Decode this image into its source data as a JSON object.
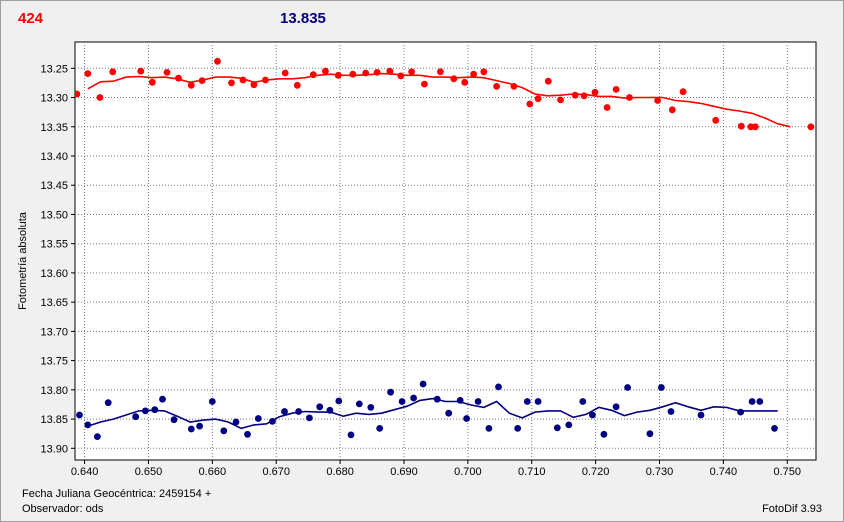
{
  "header": {
    "left_value": "424",
    "center_value": "13.835",
    "left_color": "#ff0000",
    "center_color": "#000080"
  },
  "footer": {
    "date_label": "Fecha Juliana Geocéntrica: 2459154 +",
    "observer_label": "Observador: ods",
    "version": "FotoDif 3.93"
  },
  "chart_data": {
    "type": "scatter",
    "ylabel": "Fotometría absoluta",
    "xlabel": "",
    "xlim": [
      0.6385,
      0.7545
    ],
    "ylim": [
      13.92,
      13.205
    ],
    "y_inverted": true,
    "grid": true,
    "x_ticks": [
      "0.640",
      "0.650",
      "0.660",
      "0.670",
      "0.680",
      "0.690",
      "0.700",
      "0.710",
      "0.720",
      "0.730",
      "0.740",
      "0.750"
    ],
    "y_ticks": [
      "13.25",
      "13.30",
      "13.35",
      "13.40",
      "13.45",
      "13.50",
      "13.55",
      "13.60",
      "13.65",
      "13.70",
      "13.75",
      "13.80",
      "13.85",
      "13.90"
    ],
    "series": [
      {
        "color": "#ff0000",
        "points": [
          [
            0.6388,
            13.294
          ],
          [
            0.6405,
            13.259
          ],
          [
            0.6424,
            13.3
          ],
          [
            0.6444,
            13.256
          ],
          [
            0.6488,
            13.255
          ],
          [
            0.6506,
            13.274
          ],
          [
            0.6529,
            13.257
          ],
          [
            0.6547,
            13.267
          ],
          [
            0.6567,
            13.279
          ],
          [
            0.6584,
            13.271
          ],
          [
            0.6608,
            13.238
          ],
          [
            0.663,
            13.275
          ],
          [
            0.6648,
            13.27
          ],
          [
            0.6665,
            13.278
          ],
          [
            0.6683,
            13.27
          ],
          [
            0.6714,
            13.258
          ],
          [
            0.6733,
            13.279
          ],
          [
            0.6758,
            13.261
          ],
          [
            0.6777,
            13.255
          ],
          [
            0.6797,
            13.262
          ],
          [
            0.682,
            13.26
          ],
          [
            0.684,
            13.258
          ],
          [
            0.6858,
            13.257
          ],
          [
            0.6878,
            13.255
          ],
          [
            0.6895,
            13.263
          ],
          [
            0.6912,
            13.256
          ],
          [
            0.6932,
            13.277
          ],
          [
            0.6957,
            13.256
          ],
          [
            0.6978,
            13.268
          ],
          [
            0.6995,
            13.274
          ],
          [
            0.7009,
            13.26
          ],
          [
            0.7025,
            13.256
          ],
          [
            0.7045,
            13.281
          ],
          [
            0.7072,
            13.281
          ],
          [
            0.7097,
            13.311
          ],
          [
            0.711,
            13.302
          ],
          [
            0.7126,
            13.272
          ],
          [
            0.7145,
            13.304
          ],
          [
            0.7168,
            13.296
          ],
          [
            0.7182,
            13.297
          ],
          [
            0.7199,
            13.291
          ],
          [
            0.7218,
            13.317
          ],
          [
            0.7232,
            13.286
          ],
          [
            0.7253,
            13.3
          ],
          [
            0.7297,
            13.305
          ],
          [
            0.732,
            13.321
          ],
          [
            0.7337,
            13.29
          ],
          [
            0.7388,
            13.339
          ],
          [
            0.7428,
            13.349
          ],
          [
            0.7443,
            13.35
          ],
          [
            0.745,
            13.35
          ],
          [
            0.7537,
            13.35
          ]
        ],
        "trend": [
          [
            0.6405,
            13.285
          ],
          [
            0.6425,
            13.273
          ],
          [
            0.6445,
            13.272
          ],
          [
            0.6465,
            13.265
          ],
          [
            0.6485,
            13.264
          ],
          [
            0.6505,
            13.266
          ],
          [
            0.6525,
            13.265
          ],
          [
            0.6545,
            13.268
          ],
          [
            0.6565,
            13.274
          ],
          [
            0.6585,
            13.27
          ],
          [
            0.6605,
            13.265
          ],
          [
            0.6625,
            13.265
          ],
          [
            0.6645,
            13.267
          ],
          [
            0.6665,
            13.274
          ],
          [
            0.6685,
            13.27
          ],
          [
            0.6705,
            13.268
          ],
          [
            0.6725,
            13.268
          ],
          [
            0.6745,
            13.266
          ],
          [
            0.6765,
            13.262
          ],
          [
            0.6785,
            13.26
          ],
          [
            0.6805,
            13.262
          ],
          [
            0.6825,
            13.262
          ],
          [
            0.6845,
            13.261
          ],
          [
            0.6865,
            13.259
          ],
          [
            0.6885,
            13.26
          ],
          [
            0.6905,
            13.262
          ],
          [
            0.6925,
            13.262
          ],
          [
            0.6945,
            13.265
          ],
          [
            0.6965,
            13.265
          ],
          [
            0.6985,
            13.266
          ],
          [
            0.7005,
            13.265
          ],
          [
            0.7025,
            13.266
          ],
          [
            0.7045,
            13.271
          ],
          [
            0.7065,
            13.276
          ],
          [
            0.7085,
            13.283
          ],
          [
            0.7105,
            13.294
          ],
          [
            0.7125,
            13.297
          ],
          [
            0.7145,
            13.296
          ],
          [
            0.7165,
            13.294
          ],
          [
            0.7185,
            13.295
          ],
          [
            0.7205,
            13.298
          ],
          [
            0.7225,
            13.298
          ],
          [
            0.7245,
            13.301
          ],
          [
            0.7265,
            13.3
          ],
          [
            0.7285,
            13.3
          ],
          [
            0.7305,
            13.3
          ],
          [
            0.7325,
            13.305
          ],
          [
            0.7345,
            13.307
          ],
          [
            0.7365,
            13.31
          ],
          [
            0.7385,
            13.315
          ],
          [
            0.7405,
            13.32
          ],
          [
            0.7425,
            13.323
          ],
          [
            0.7445,
            13.327
          ],
          [
            0.7465,
            13.335
          ],
          [
            0.7485,
            13.345
          ],
          [
            0.7505,
            13.35
          ]
        ]
      },
      {
        "color": "#000080",
        "points": [
          [
            0.6392,
            13.843
          ],
          [
            0.6405,
            13.86
          ],
          [
            0.642,
            13.88
          ],
          [
            0.6437,
            13.822
          ],
          [
            0.648,
            13.846
          ],
          [
            0.6495,
            13.836
          ],
          [
            0.651,
            13.834
          ],
          [
            0.6522,
            13.816
          ],
          [
            0.654,
            13.851
          ],
          [
            0.6567,
            13.867
          ],
          [
            0.658,
            13.862
          ],
          [
            0.66,
            13.82
          ],
          [
            0.6618,
            13.87
          ],
          [
            0.6637,
            13.855
          ],
          [
            0.6655,
            13.876
          ],
          [
            0.6672,
            13.849
          ],
          [
            0.6694,
            13.854
          ],
          [
            0.6713,
            13.837
          ],
          [
            0.6735,
            13.837
          ],
          [
            0.6752,
            13.848
          ],
          [
            0.6768,
            13.829
          ],
          [
            0.6784,
            13.835
          ],
          [
            0.6798,
            13.819
          ],
          [
            0.6817,
            13.877
          ],
          [
            0.683,
            13.824
          ],
          [
            0.6848,
            13.83
          ],
          [
            0.6862,
            13.866
          ],
          [
            0.6879,
            13.804
          ],
          [
            0.6897,
            13.82
          ],
          [
            0.6915,
            13.814
          ],
          [
            0.693,
            13.79
          ],
          [
            0.6952,
            13.816
          ],
          [
            0.697,
            13.84
          ],
          [
            0.6988,
            13.818
          ],
          [
            0.6998,
            13.849
          ],
          [
            0.7016,
            13.82
          ],
          [
            0.7033,
            13.866
          ],
          [
            0.7048,
            13.795
          ],
          [
            0.7078,
            13.866
          ],
          [
            0.7093,
            13.82
          ],
          [
            0.711,
            13.82
          ],
          [
            0.714,
            13.865
          ],
          [
            0.7158,
            13.86
          ],
          [
            0.718,
            13.82
          ],
          [
            0.7195,
            13.843
          ],
          [
            0.7213,
            13.876
          ],
          [
            0.7232,
            13.829
          ],
          [
            0.725,
            13.796
          ],
          [
            0.7285,
            13.875
          ],
          [
            0.7303,
            13.796
          ],
          [
            0.7318,
            13.837
          ],
          [
            0.7365,
            13.843
          ],
          [
            0.7427,
            13.838
          ],
          [
            0.7445,
            13.82
          ],
          [
            0.7457,
            13.82
          ],
          [
            0.748,
            13.866
          ]
        ],
        "trend": [
          [
            0.6405,
            13.862
          ],
          [
            0.6425,
            13.855
          ],
          [
            0.6445,
            13.85
          ],
          [
            0.6465,
            13.843
          ],
          [
            0.6485,
            13.836
          ],
          [
            0.6505,
            13.835
          ],
          [
            0.6525,
            13.836
          ],
          [
            0.6545,
            13.845
          ],
          [
            0.6565,
            13.855
          ],
          [
            0.6585,
            13.852
          ],
          [
            0.6605,
            13.85
          ],
          [
            0.6625,
            13.855
          ],
          [
            0.6645,
            13.866
          ],
          [
            0.6665,
            13.86
          ],
          [
            0.6685,
            13.858
          ],
          [
            0.6705,
            13.846
          ],
          [
            0.6725,
            13.84
          ],
          [
            0.6745,
            13.837
          ],
          [
            0.6765,
            13.838
          ],
          [
            0.6785,
            13.838
          ],
          [
            0.6805,
            13.845
          ],
          [
            0.6825,
            13.84
          ],
          [
            0.6845,
            13.842
          ],
          [
            0.6865,
            13.84
          ],
          [
            0.6885,
            13.834
          ],
          [
            0.6905,
            13.828
          ],
          [
            0.6925,
            13.818
          ],
          [
            0.6945,
            13.815
          ],
          [
            0.6965,
            13.82
          ],
          [
            0.6985,
            13.82
          ],
          [
            0.7005,
            13.826
          ],
          [
            0.7025,
            13.83
          ],
          [
            0.7045,
            13.82
          ],
          [
            0.7065,
            13.84
          ],
          [
            0.7085,
            13.848
          ],
          [
            0.7105,
            13.838
          ],
          [
            0.7125,
            13.836
          ],
          [
            0.7145,
            13.836
          ],
          [
            0.7165,
            13.847
          ],
          [
            0.7185,
            13.842
          ],
          [
            0.7205,
            13.83
          ],
          [
            0.7225,
            13.835
          ],
          [
            0.7245,
            13.844
          ],
          [
            0.7265,
            13.838
          ],
          [
            0.7285,
            13.835
          ],
          [
            0.7305,
            13.829
          ],
          [
            0.7325,
            13.822
          ],
          [
            0.7345,
            13.829
          ],
          [
            0.7365,
            13.835
          ],
          [
            0.7385,
            13.829
          ],
          [
            0.7405,
            13.83
          ],
          [
            0.7425,
            13.836
          ],
          [
            0.7445,
            13.836
          ],
          [
            0.7465,
            13.836
          ],
          [
            0.7485,
            13.836
          ]
        ]
      }
    ]
  }
}
